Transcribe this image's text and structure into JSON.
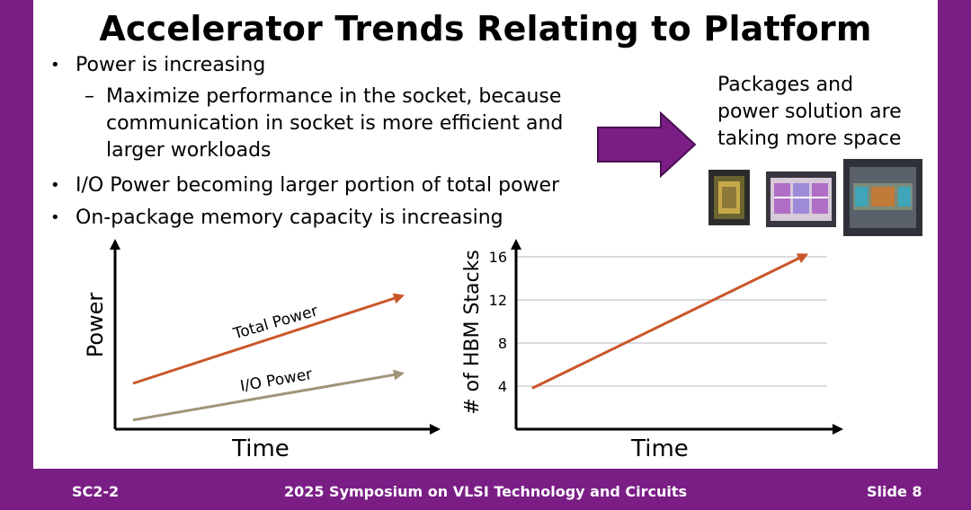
{
  "slide": {
    "title": "Accelerator Trends Relating to Platform",
    "bullets": [
      {
        "text": "Power is increasing"
      },
      {
        "text": "I/O Power becoming larger portion of total power"
      },
      {
        "text": "On-package memory capacity is increasing"
      }
    ],
    "sub_bullet_lines": [
      "Maximize performance in the socket, because",
      "communication in socket is more efficient and",
      "larger workloads"
    ],
    "packages_lines": [
      "Packages and",
      "power solution are",
      "taking more space"
    ],
    "bullet_glyph": "•",
    "dash_glyph": "–"
  },
  "colors": {
    "accent": "#7a1e86",
    "total_power": "#c9572a",
    "io_power": "#a09478",
    "hbm_line": "#c9572a"
  },
  "chart_data": [
    {
      "type": "line",
      "xlabel": "Time",
      "ylabel": "Power",
      "series": [
        {
          "name": "Total Power",
          "trend": "increasing",
          "start": 0.25,
          "end": 0.72
        },
        {
          "name": "I/O Power",
          "trend": "increasing",
          "start": 0.05,
          "end": 0.3
        }
      ]
    },
    {
      "type": "line",
      "xlabel": "Time",
      "ylabel": "# of HBM Stacks",
      "yticks": [
        "4",
        "8",
        "12",
        "16"
      ],
      "ylim": [
        0,
        17
      ],
      "grid": true,
      "series": [
        {
          "values": [
            3.8,
            16
          ]
        }
      ]
    }
  ],
  "footer": {
    "left": "SC2-2",
    "center": "2025 Symposium on VLSI Technology and Circuits",
    "right": "Slide 8"
  }
}
